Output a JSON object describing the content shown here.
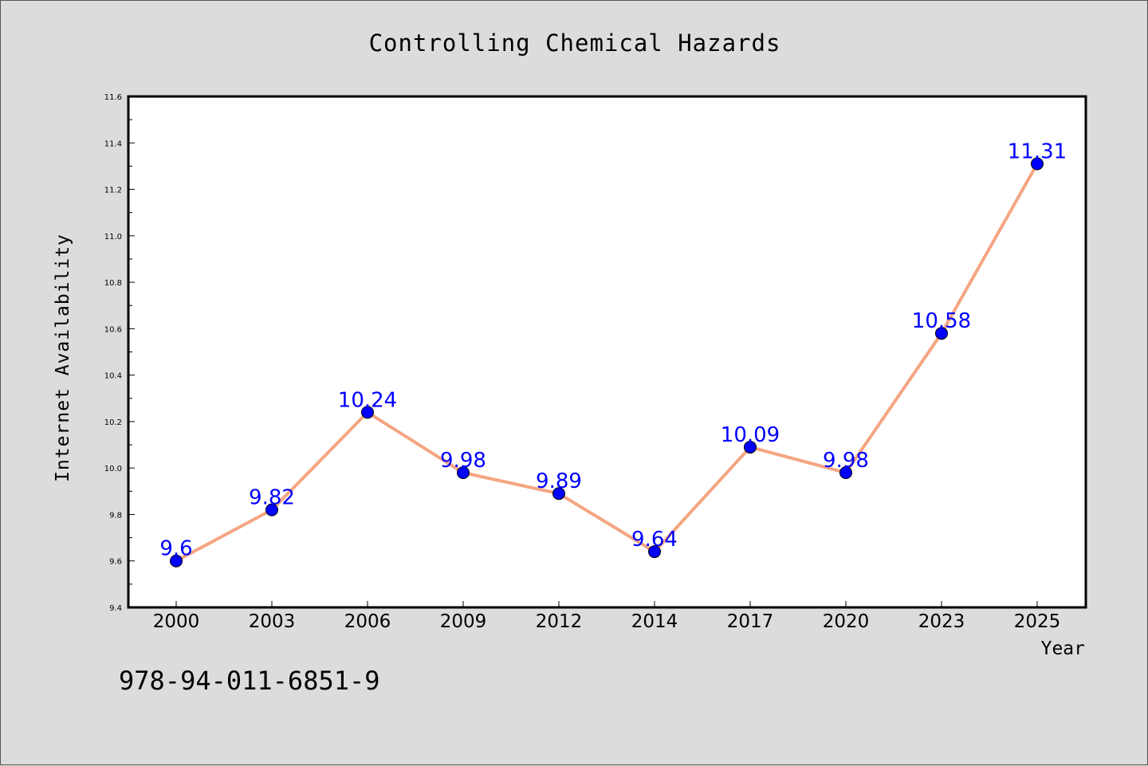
{
  "chart_data": {
    "type": "line",
    "title": "Controlling Chemical Hazards",
    "xlabel": "Year",
    "ylabel": "Internet Availability",
    "categories": [
      "2000",
      "2003",
      "2006",
      "2009",
      "2012",
      "2014",
      "2017",
      "2020",
      "2023",
      "2025"
    ],
    "series": [
      {
        "values": [
          9.6,
          9.82,
          10.24,
          9.98,
          9.89,
          9.64,
          10.09,
          9.98,
          10.58,
          11.31
        ]
      }
    ],
    "data_labels": [
      "9.6",
      "9.82",
      "10.24",
      "9.98",
      "9.89",
      "9.64",
      "10.09",
      "9.98",
      "10.58",
      "11.31"
    ],
    "ylim": [
      9.4,
      11.6
    ],
    "yticks": [
      "9.4",
      "9.6",
      "9.8",
      "10.0",
      "10.2",
      "10.4",
      "10.6",
      "10.8",
      "11.0",
      "11.2",
      "11.4",
      "11.6"
    ],
    "grid": false,
    "line_color": "#f4a582",
    "marker_color": "#0000ff",
    "label_color": "#0000ff"
  },
  "footer": {
    "isbn": "978-94-011-6851-9"
  }
}
